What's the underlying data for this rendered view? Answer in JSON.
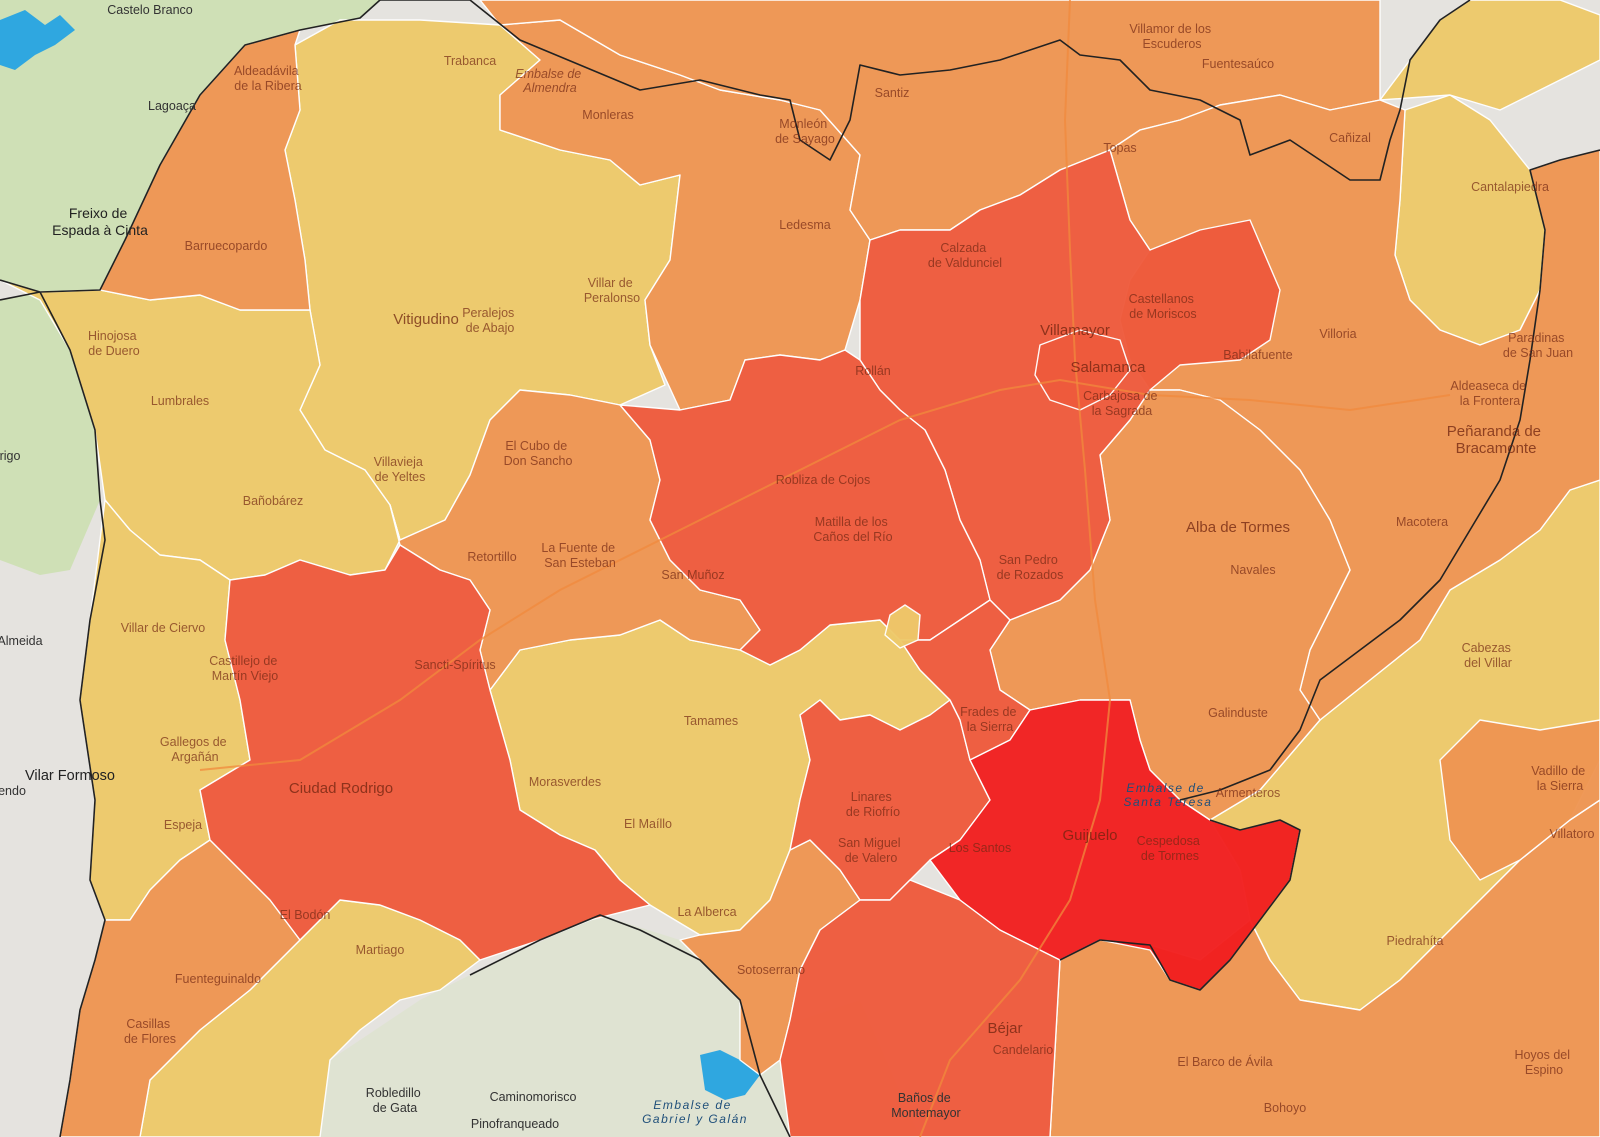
{
  "map": {
    "colors": {
      "background_land": "#e5e3df",
      "portugal_green": "#cfe0b6",
      "low": "#eec96a",
      "medium": "#ef9552",
      "high": "#ef5a3c",
      "very_high": "#f21f1f",
      "water": "#2fa7e0",
      "borders": "#222222"
    },
    "labels": {
      "castelo_branco": "Castelo Branco",
      "trabanca": "Trabanca",
      "embalse_almendra": "Embalse de Almendra",
      "aldeadavila": "Aldeadávila de la Ribera",
      "lagoaca": "Lagoaça",
      "freixo": "Freixo de Espada à Cinta",
      "barruecopardo": "Barruecopardo",
      "hinojosa": "Hinojosa de Duero",
      "lumbrales": "Lumbrales",
      "vitigudino": "Vitigudino",
      "peralejos": "Peralejos de Abajo",
      "villar_peralonso": "Villar de Peralonso",
      "monleras": "Monleras",
      "ledesma": "Ledesma",
      "santiz": "Santiz",
      "monleon": "Monleón de Sayago",
      "villamor": "Villamor de los Escuderos",
      "fuentesauco": "Fuentesaúco",
      "topas": "Topas",
      "canizal": "Cañizal",
      "cantalapiedra": "Cantalapiedra",
      "calzada_valdunciel": "Calzada de Valdunciel",
      "castellanos": "Castellanos de Moriscos",
      "villamayor": "Villamayor",
      "salamanca": "Salamanca",
      "carbajosa": "Carbajosa de la Sagrada",
      "villoria": "Villoria",
      "paradinas": "Paradinas de San Juan",
      "aldeaseca": "Aldeaseca de la Frontera",
      "penaranda": "Peñaranda de Bracamonte",
      "babilafuente": "Babilafuente",
      "rollan": "Rollán",
      "el_cubo": "El Cubo de Don Sancho",
      "villavieja": "Villavieja de Yeltes",
      "banobarez": "Bañobárez",
      "robliza": "Robliza de Cojos",
      "matilla": "Matilla de los Caños del Río",
      "alba": "Alba de Tormes",
      "macotera": "Macotera",
      "navales": "Navales",
      "retortillo": "Retortillo",
      "la_fuente": "La Fuente de San Esteban",
      "san_munoz": "San Muñoz",
      "san_pedro": "San Pedro de Rozados",
      "villar_ciervo": "Villar de Ciervo",
      "castillejo": "Castillejo de Martín Viejo",
      "sancti_spiritus": "Sancti-Spíritus",
      "almeida": "Almeida",
      "gallegos": "Gallegos de Argañán",
      "vilar_formoso": "Vilar Formoso",
      "ciudad_rodrigo": "Ciudad Rodrigo",
      "espeja": "Espeja",
      "tamames": "Tamames",
      "morasverdes": "Morasverdes",
      "el_maillo": "El Maíllo",
      "linares": "Linares de Riofrío",
      "frades": "Frades de la Sierra",
      "galinduste": "Galinduste",
      "cabezas": "Cabezas del Villar",
      "embalse_santa_teresa": "Embalse de Santa Teresa",
      "armenteros": "Armenteros",
      "vadillo": "Vadillo de la Sierra",
      "villatoro": "Villatoro",
      "san_miguel": "San Miguel de Valero",
      "los_santos": "Los Santos",
      "guijuelo": "Guijuelo",
      "cespedosa": "Cespedosa de Tormes",
      "el_bodon": "El Bodón",
      "la_alberca": "La Alberca",
      "piedrahita": "Piedrahíta",
      "martiago": "Martiago",
      "fuenteguinaldo": "Fuenteguinaldo",
      "sotoserrano": "Sotoserrano",
      "casillas": "Casillas de Flores",
      "bejar": "Béjar",
      "candelario": "Candelario",
      "barco_avila": "El Barco de Ávila",
      "hoyos": "Hoyos del Espino",
      "bohoyo": "Bohoyo",
      "robledillo": "Robledillo de Gata",
      "caminomorisco": "Caminomorisco",
      "pinofranqueado": "Pinofranqueado",
      "embalse_gabriel": "Embalse de Gabriel y Galán",
      "banos": "Baños de Montemayor",
      "rigo": "rigo",
      "endo": "endo"
    }
  }
}
